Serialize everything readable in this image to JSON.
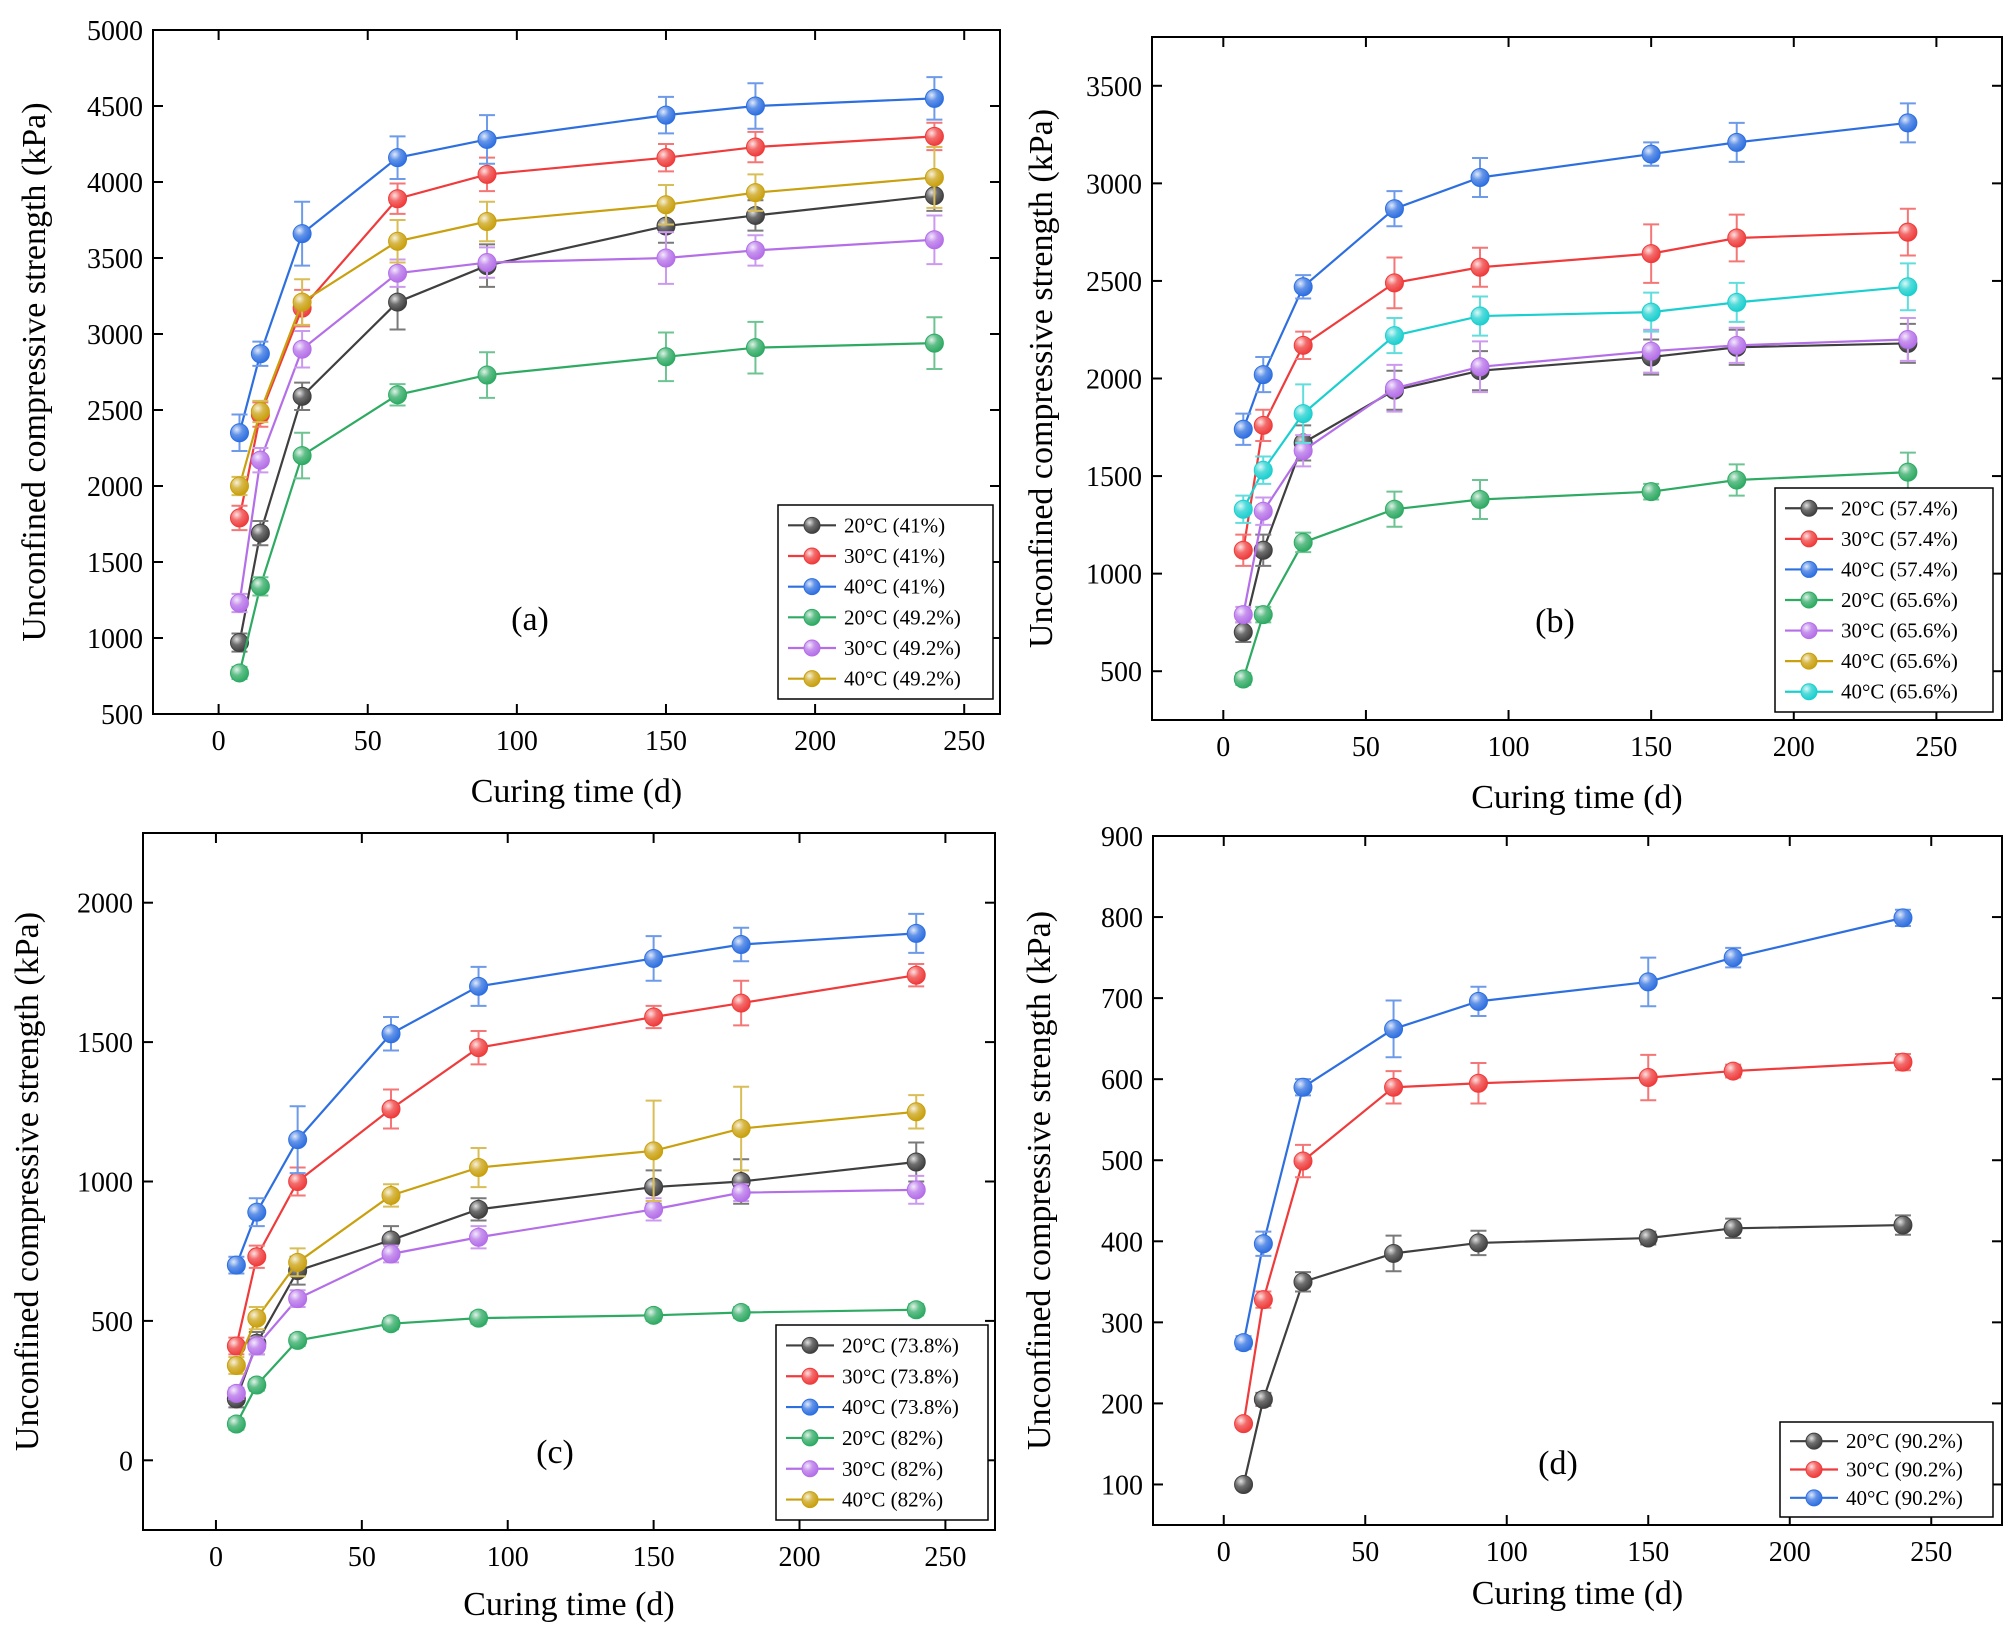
{
  "colors": {
    "20°C": "#3f3f3f",
    "30°C": "#ef3b3b",
    "40°C": "#2e6fe0",
    "20°C-b": "#2eaa63",
    "30°C-b": "#b46fe8",
    "40°C-b": "#c9a00e",
    "40°C-c": "#1ccfcf"
  },
  "chart_data": [
    {
      "type": "line",
      "panel": "(a)",
      "xlabel": "Curing time (d)",
      "ylabel": "Unconfined compressive strength (kPa)",
      "xlim": [
        -22,
        262
      ],
      "ylim": [
        500,
        5000
      ],
      "xticks": [
        0,
        50,
        100,
        150,
        200,
        250
      ],
      "yticks": [
        500,
        1000,
        1500,
        2000,
        2500,
        3000,
        3500,
        4000,
        4500,
        5000
      ],
      "legend_position": "bottom-right",
      "x": [
        7,
        14,
        28,
        60,
        90,
        150,
        180,
        240
      ],
      "series": [
        {
          "name": "20°C (41%)",
          "color_key": "20°C",
          "values": [
            970,
            1690,
            2590,
            3210,
            3450,
            3710,
            3780,
            3910
          ],
          "errors": [
            60,
            80,
            90,
            180,
            140,
            110,
            100,
            100
          ]
        },
        {
          "name": "30°C (41%)",
          "color_key": "30°C",
          "values": [
            1790,
            2470,
            3170,
            3890,
            4050,
            4160,
            4230,
            4300
          ],
          "errors": [
            80,
            80,
            120,
            100,
            110,
            90,
            100,
            90
          ]
        },
        {
          "name": "40°C (41%)",
          "color_key": "40°C",
          "values": [
            2350,
            2870,
            3660,
            4160,
            4280,
            4440,
            4500,
            4550
          ],
          "errors": [
            120,
            80,
            210,
            140,
            160,
            120,
            150,
            140
          ]
        },
        {
          "name": "20°C (49.2%)",
          "color_key": "20°C-b",
          "values": [
            770,
            1340,
            2200,
            2600,
            2730,
            2850,
            2910,
            2940
          ],
          "errors": [
            40,
            60,
            150,
            70,
            150,
            160,
            170,
            170
          ]
        },
        {
          "name": "30°C (49.2%)",
          "color_key": "30°C-b",
          "values": [
            1230,
            2170,
            2900,
            3400,
            3470,
            3500,
            3550,
            3620
          ],
          "errors": [
            60,
            80,
            120,
            90,
            100,
            170,
            100,
            160
          ]
        },
        {
          "name": "40°C (49.2%)",
          "color_key": "40°C-b",
          "values": [
            2000,
            2490,
            3210,
            3610,
            3740,
            3850,
            3930,
            4030
          ],
          "errors": [
            60,
            70,
            150,
            140,
            130,
            130,
            120,
            200
          ]
        }
      ]
    },
    {
      "type": "line",
      "panel": "(b)",
      "xlabel": "Curing time (d)",
      "ylabel": "Unconfined compressive strength (kPa)",
      "xlim": [
        -25,
        273
      ],
      "ylim": [
        250,
        3750
      ],
      "xticks": [
        0,
        50,
        100,
        150,
        200,
        250
      ],
      "yticks": [
        500,
        1000,
        1500,
        2000,
        2500,
        3000,
        3500
      ],
      "legend_position": "bottom-right",
      "x": [
        7,
        14,
        28,
        60,
        90,
        150,
        180,
        240
      ],
      "series": [
        {
          "name": "20°C (57.4%)",
          "color_key": "20°C",
          "values": [
            700,
            1120,
            1670,
            1940,
            2040,
            2110,
            2160,
            2180
          ],
          "errors": [
            50,
            80,
            90,
            100,
            100,
            90,
            90,
            100
          ]
        },
        {
          "name": "30°C (57.4%)",
          "color_key": "30°C",
          "values": [
            1120,
            1760,
            2170,
            2490,
            2570,
            2640,
            2720,
            2750
          ],
          "errors": [
            80,
            80,
            70,
            130,
            100,
            150,
            120,
            120
          ]
        },
        {
          "name": "40°C (57.4%)",
          "color_key": "40°C",
          "values": [
            1740,
            2020,
            2470,
            2870,
            3030,
            3150,
            3210,
            3310
          ],
          "errors": [
            80,
            90,
            60,
            90,
            100,
            60,
            100,
            100
          ]
        },
        {
          "name": "20°C (65.6%)",
          "color_key": "20°C-b",
          "values": [
            460,
            790,
            1160,
            1330,
            1380,
            1420,
            1480,
            1520
          ],
          "errors": [
            30,
            40,
            50,
            90,
            100,
            40,
            80,
            100
          ]
        },
        {
          "name": "30°C (65.6%)",
          "color_key": "30°C-b",
          "values": [
            790,
            1320,
            1630,
            1950,
            2060,
            2140,
            2170,
            2200
          ],
          "errors": [
            40,
            70,
            80,
            120,
            130,
            110,
            90,
            110
          ]
        },
        {
          "name": "40°C (65.6%)",
          "color_key": "40°C-b",
          "values": [
            1330,
            1530,
            1820,
            2220,
            2320,
            2340,
            2390,
            2470
          ],
          "errors": [
            70,
            70,
            150,
            90,
            100,
            100,
            100,
            120
          ]
        },
        {
          "name": "40°C (65.6%)",
          "color_key": "40°C-c",
          "values": [
            1330,
            1530,
            1820,
            2220,
            2320,
            2340,
            2390,
            2470
          ],
          "errors": [
            70,
            70,
            150,
            90,
            100,
            100,
            100,
            120
          ]
        }
      ]
    },
    {
      "type": "line",
      "panel": "(c)",
      "xlabel": "Curing time (d)",
      "ylabel": "Unconfined compressive strength (kPa)",
      "xlim": [
        -25,
        267
      ],
      "ylim": [
        -250,
        2250
      ],
      "xticks": [
        0,
        50,
        100,
        150,
        200,
        250
      ],
      "yticks": [
        0,
        500,
        1000,
        1500,
        2000
      ],
      "legend_position": "bottom-right",
      "x": [
        7,
        14,
        28,
        60,
        90,
        150,
        180,
        240
      ],
      "series": [
        {
          "name": "20°C (73.8%)",
          "color_key": "20°C",
          "values": [
            220,
            420,
            680,
            790,
            900,
            980,
            1000,
            1070
          ],
          "errors": [
            30,
            40,
            50,
            50,
            40,
            60,
            80,
            70
          ]
        },
        {
          "name": "30°C (73.8%)",
          "color_key": "30°C",
          "values": [
            410,
            730,
            1000,
            1260,
            1480,
            1590,
            1640,
            1740
          ],
          "errors": [
            30,
            40,
            50,
            70,
            60,
            40,
            80,
            40
          ]
        },
        {
          "name": "40°C (73.8%)",
          "color_key": "40°C",
          "values": [
            700,
            890,
            1150,
            1530,
            1700,
            1800,
            1850,
            1890
          ],
          "errors": [
            30,
            50,
            120,
            60,
            70,
            80,
            60,
            70
          ]
        },
        {
          "name": "20°C (82%)",
          "color_key": "20°C-b",
          "values": [
            130,
            270,
            430,
            490,
            510,
            520,
            530,
            540
          ],
          "errors": [
            20,
            20,
            20,
            20,
            20,
            20,
            20,
            20
          ]
        },
        {
          "name": "30°C (82%)",
          "color_key": "30°C-b",
          "values": [
            240,
            410,
            580,
            740,
            800,
            900,
            960,
            970
          ],
          "errors": [
            20,
            30,
            30,
            30,
            40,
            40,
            30,
            50
          ]
        },
        {
          "name": "40°C (82%)",
          "color_key": "40°C-b",
          "values": [
            340,
            510,
            710,
            950,
            1050,
            1110,
            1190,
            1250
          ],
          "errors": [
            30,
            40,
            50,
            40,
            70,
            180,
            150,
            60
          ]
        }
      ]
    },
    {
      "type": "line",
      "panel": "(d)",
      "xlabel": "Curing time (d)",
      "ylabel": "Unconfined compressive strength (kPa)",
      "xlim": [
        -25,
        275
      ],
      "ylim": [
        50,
        900
      ],
      "xticks": [
        0,
        50,
        100,
        150,
        200,
        250
      ],
      "yticks": [
        100,
        200,
        300,
        400,
        500,
        600,
        700,
        800,
        900
      ],
      "legend_position": "bottom-right",
      "x": [
        7,
        14,
        28,
        60,
        90,
        150,
        180,
        240
      ],
      "series": [
        {
          "name": "20°C (90.2%)",
          "color_key": "20°C",
          "values": [
            100,
            205,
            350,
            385,
            398,
            404,
            416,
            420
          ],
          "errors": [
            5,
            8,
            12,
            22,
            15,
            8,
            12,
            12
          ]
        },
        {
          "name": "30°C (90.2%)",
          "color_key": "30°C",
          "values": [
            175,
            328,
            499,
            590,
            595,
            602,
            610,
            621
          ],
          "errors": [
            5,
            10,
            20,
            20,
            25,
            28,
            8,
            10
          ]
        },
        {
          "name": "40°C (90.2%)",
          "color_key": "40°C",
          "values": [
            275,
            397,
            590,
            662,
            696,
            720,
            750,
            799
          ],
          "errors": [
            8,
            15,
            10,
            35,
            18,
            30,
            12,
            10
          ]
        }
      ]
    }
  ]
}
